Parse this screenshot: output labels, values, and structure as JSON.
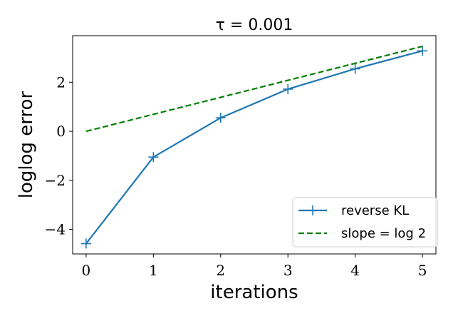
{
  "chart_data": {
    "type": "line",
    "title": "τ = 0.001",
    "xlabel": "iterations",
    "ylabel": "loglog error",
    "x": [
      0,
      1,
      2,
      3,
      4,
      5
    ],
    "xlim": [
      -0.2,
      5.2
    ],
    "ylim": [
      -5.0,
      3.9
    ],
    "xticks": [
      0,
      1,
      2,
      3,
      4,
      5
    ],
    "yticks": [
      -4,
      -2,
      0,
      2
    ],
    "ytick_labels": [
      "−4",
      "−2",
      "0",
      "2"
    ],
    "grid": false,
    "legend_position": "bottom-right",
    "series": [
      {
        "name": "reverse KL",
        "values": [
          -4.58,
          -1.05,
          0.55,
          1.72,
          2.55,
          3.28
        ],
        "color": "#1f77b4",
        "style": "solid",
        "marker": "plus"
      },
      {
        "name": "slope = log 2",
        "values": [
          0.0,
          0.693,
          1.386,
          2.079,
          2.773,
          3.466
        ],
        "color": "#008000",
        "style": "dashed",
        "marker": "none"
      }
    ]
  }
}
